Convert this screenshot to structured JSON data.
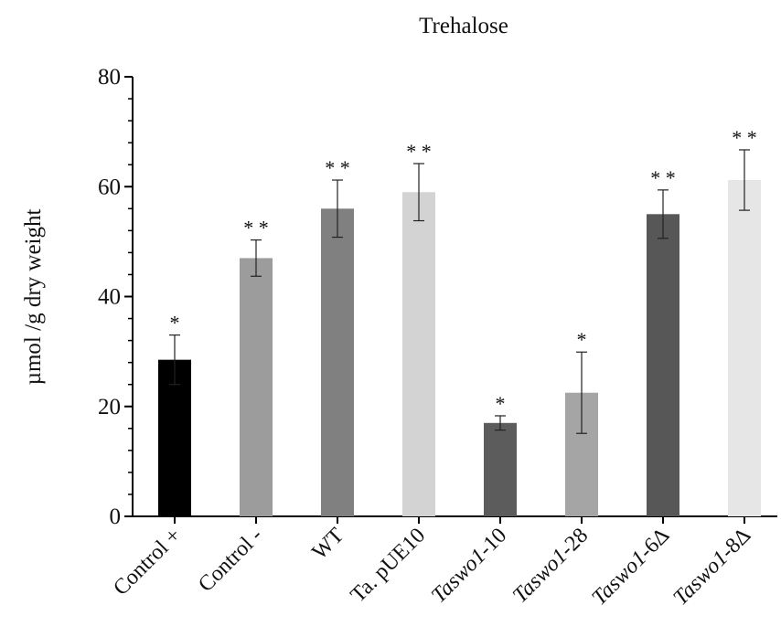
{
  "chart_data": {
    "type": "bar",
    "title": "Trehalose",
    "xlabel": "",
    "ylabel": "µmol /g dry weight",
    "ylim": [
      0,
      80
    ],
    "yticks": [
      "0",
      "20",
      "40",
      "60",
      "80"
    ],
    "grid": false,
    "categories": [
      {
        "prefix": "",
        "italic": "",
        "suffix": "Control +"
      },
      {
        "prefix": "",
        "italic": "",
        "suffix": "Control -"
      },
      {
        "prefix": "",
        "italic": "",
        "suffix": "WT"
      },
      {
        "prefix": "",
        "italic": "",
        "suffix": "Ta. pUE10"
      },
      {
        "prefix": "",
        "italic": "Taswo1",
        "suffix": "-10"
      },
      {
        "prefix": "",
        "italic": "Taswo1",
        "suffix": "-28"
      },
      {
        "prefix": "",
        "italic": "Taswo1",
        "suffix": "-6Δ"
      },
      {
        "prefix": "",
        "italic": "Taswo1",
        "suffix": "-8Δ"
      }
    ],
    "values": [
      28.5,
      47.0,
      56.0,
      59.0,
      17.0,
      22.5,
      55.0,
      61.2
    ],
    "error": [
      4.5,
      3.3,
      5.2,
      5.2,
      1.3,
      7.4,
      4.4,
      5.5
    ],
    "significance": [
      "*",
      "* *",
      "* *",
      "* *",
      "*",
      "*",
      "* *",
      "* *"
    ],
    "colors": [
      "#000000",
      "#9c9c9c",
      "#808080",
      "#d3d3d3",
      "#5c5c5c",
      "#a5a5a5",
      "#575757",
      "#e6e6e6"
    ]
  }
}
